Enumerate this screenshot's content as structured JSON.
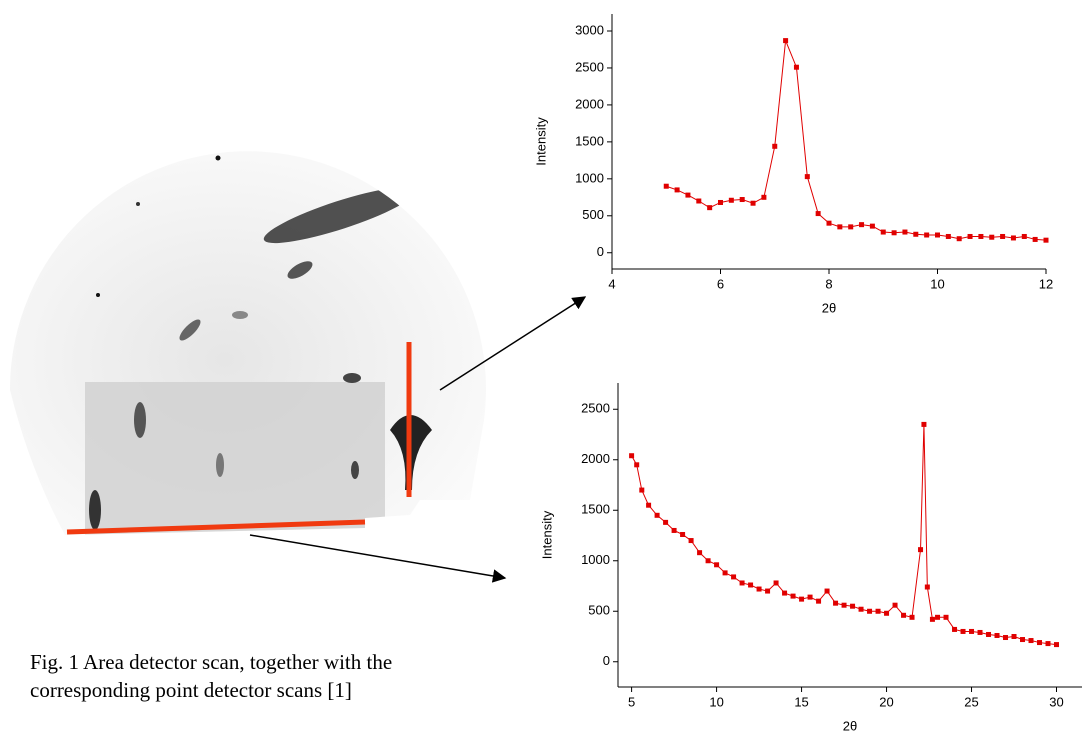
{
  "caption": [
    "Fig. 1  Area detector scan, together with the",
    "corresponding point detector scans [1]"
  ],
  "chart_data": [
    {
      "type": "line",
      "xlabel": "2θ",
      "ylabel": "Intensity",
      "xlim": [
        4,
        12
      ],
      "xticks": [
        4,
        6,
        8,
        10,
        12
      ],
      "ylim": [
        -220,
        3230
      ],
      "yticks": [
        0,
        500,
        1000,
        1500,
        2000,
        2500,
        3000
      ],
      "x": [
        5,
        5.2,
        5.4,
        5.6,
        5.8,
        6,
        6.2,
        6.4,
        6.6,
        6.8,
        7,
        7.2,
        7.4,
        7.6,
        7.8,
        8,
        8.2,
        8.4,
        8.6,
        8.8,
        9,
        9.2,
        9.4,
        9.6,
        9.8,
        10,
        10.2,
        10.4,
        10.6,
        10.8,
        11,
        11.2,
        11.4,
        11.6,
        11.8,
        12
      ],
      "series": [
        {
          "color": "#e00000",
          "values": [
            900,
            850,
            780,
            700,
            610,
            680,
            710,
            720,
            670,
            750,
            1440,
            2870,
            2510,
            1030,
            530,
            400,
            350,
            350,
            380,
            360,
            280,
            270,
            280,
            250,
            240,
            240,
            220,
            190,
            220,
            220,
            210,
            220,
            200,
            220,
            180,
            170
          ]
        }
      ]
    },
    {
      "type": "line",
      "xlabel": "2θ",
      "ylabel": "Intensity",
      "xlim": [
        4.2,
        31.5
      ],
      "xticks": [
        5,
        10,
        15,
        20,
        25,
        30
      ],
      "ylim": [
        -250,
        2760
      ],
      "yticks": [
        0,
        500,
        1000,
        1500,
        2000,
        2500
      ],
      "x": [
        5,
        5.3,
        5.6,
        6,
        6.5,
        7,
        7.5,
        8,
        8.5,
        9,
        9.5,
        10,
        10.5,
        11,
        11.5,
        12,
        12.5,
        13,
        13.5,
        14,
        14.5,
        15,
        15.5,
        16,
        16.5,
        17,
        17.5,
        18,
        18.5,
        19,
        19.5,
        20,
        20.5,
        21,
        21.5,
        22,
        22.2,
        22.4,
        22.7,
        23,
        23.5,
        24,
        24.5,
        25,
        25.5,
        26,
        26.5,
        27,
        27.5,
        28,
        28.5,
        29,
        29.5,
        30
      ],
      "series": [
        {
          "color": "#e00000",
          "values": [
            2040,
            1950,
            1700,
            1550,
            1450,
            1380,
            1300,
            1260,
            1200,
            1080,
            1000,
            960,
            880,
            840,
            780,
            760,
            720,
            700,
            780,
            680,
            650,
            620,
            640,
            600,
            700,
            580,
            560,
            550,
            520,
            500,
            500,
            480,
            560,
            460,
            440,
            1110,
            2350,
            740,
            420,
            440,
            440,
            320,
            300,
            300,
            290,
            270,
            260,
            240,
            250,
            220,
            210,
            190,
            180,
            170
          ]
        }
      ]
    }
  ]
}
